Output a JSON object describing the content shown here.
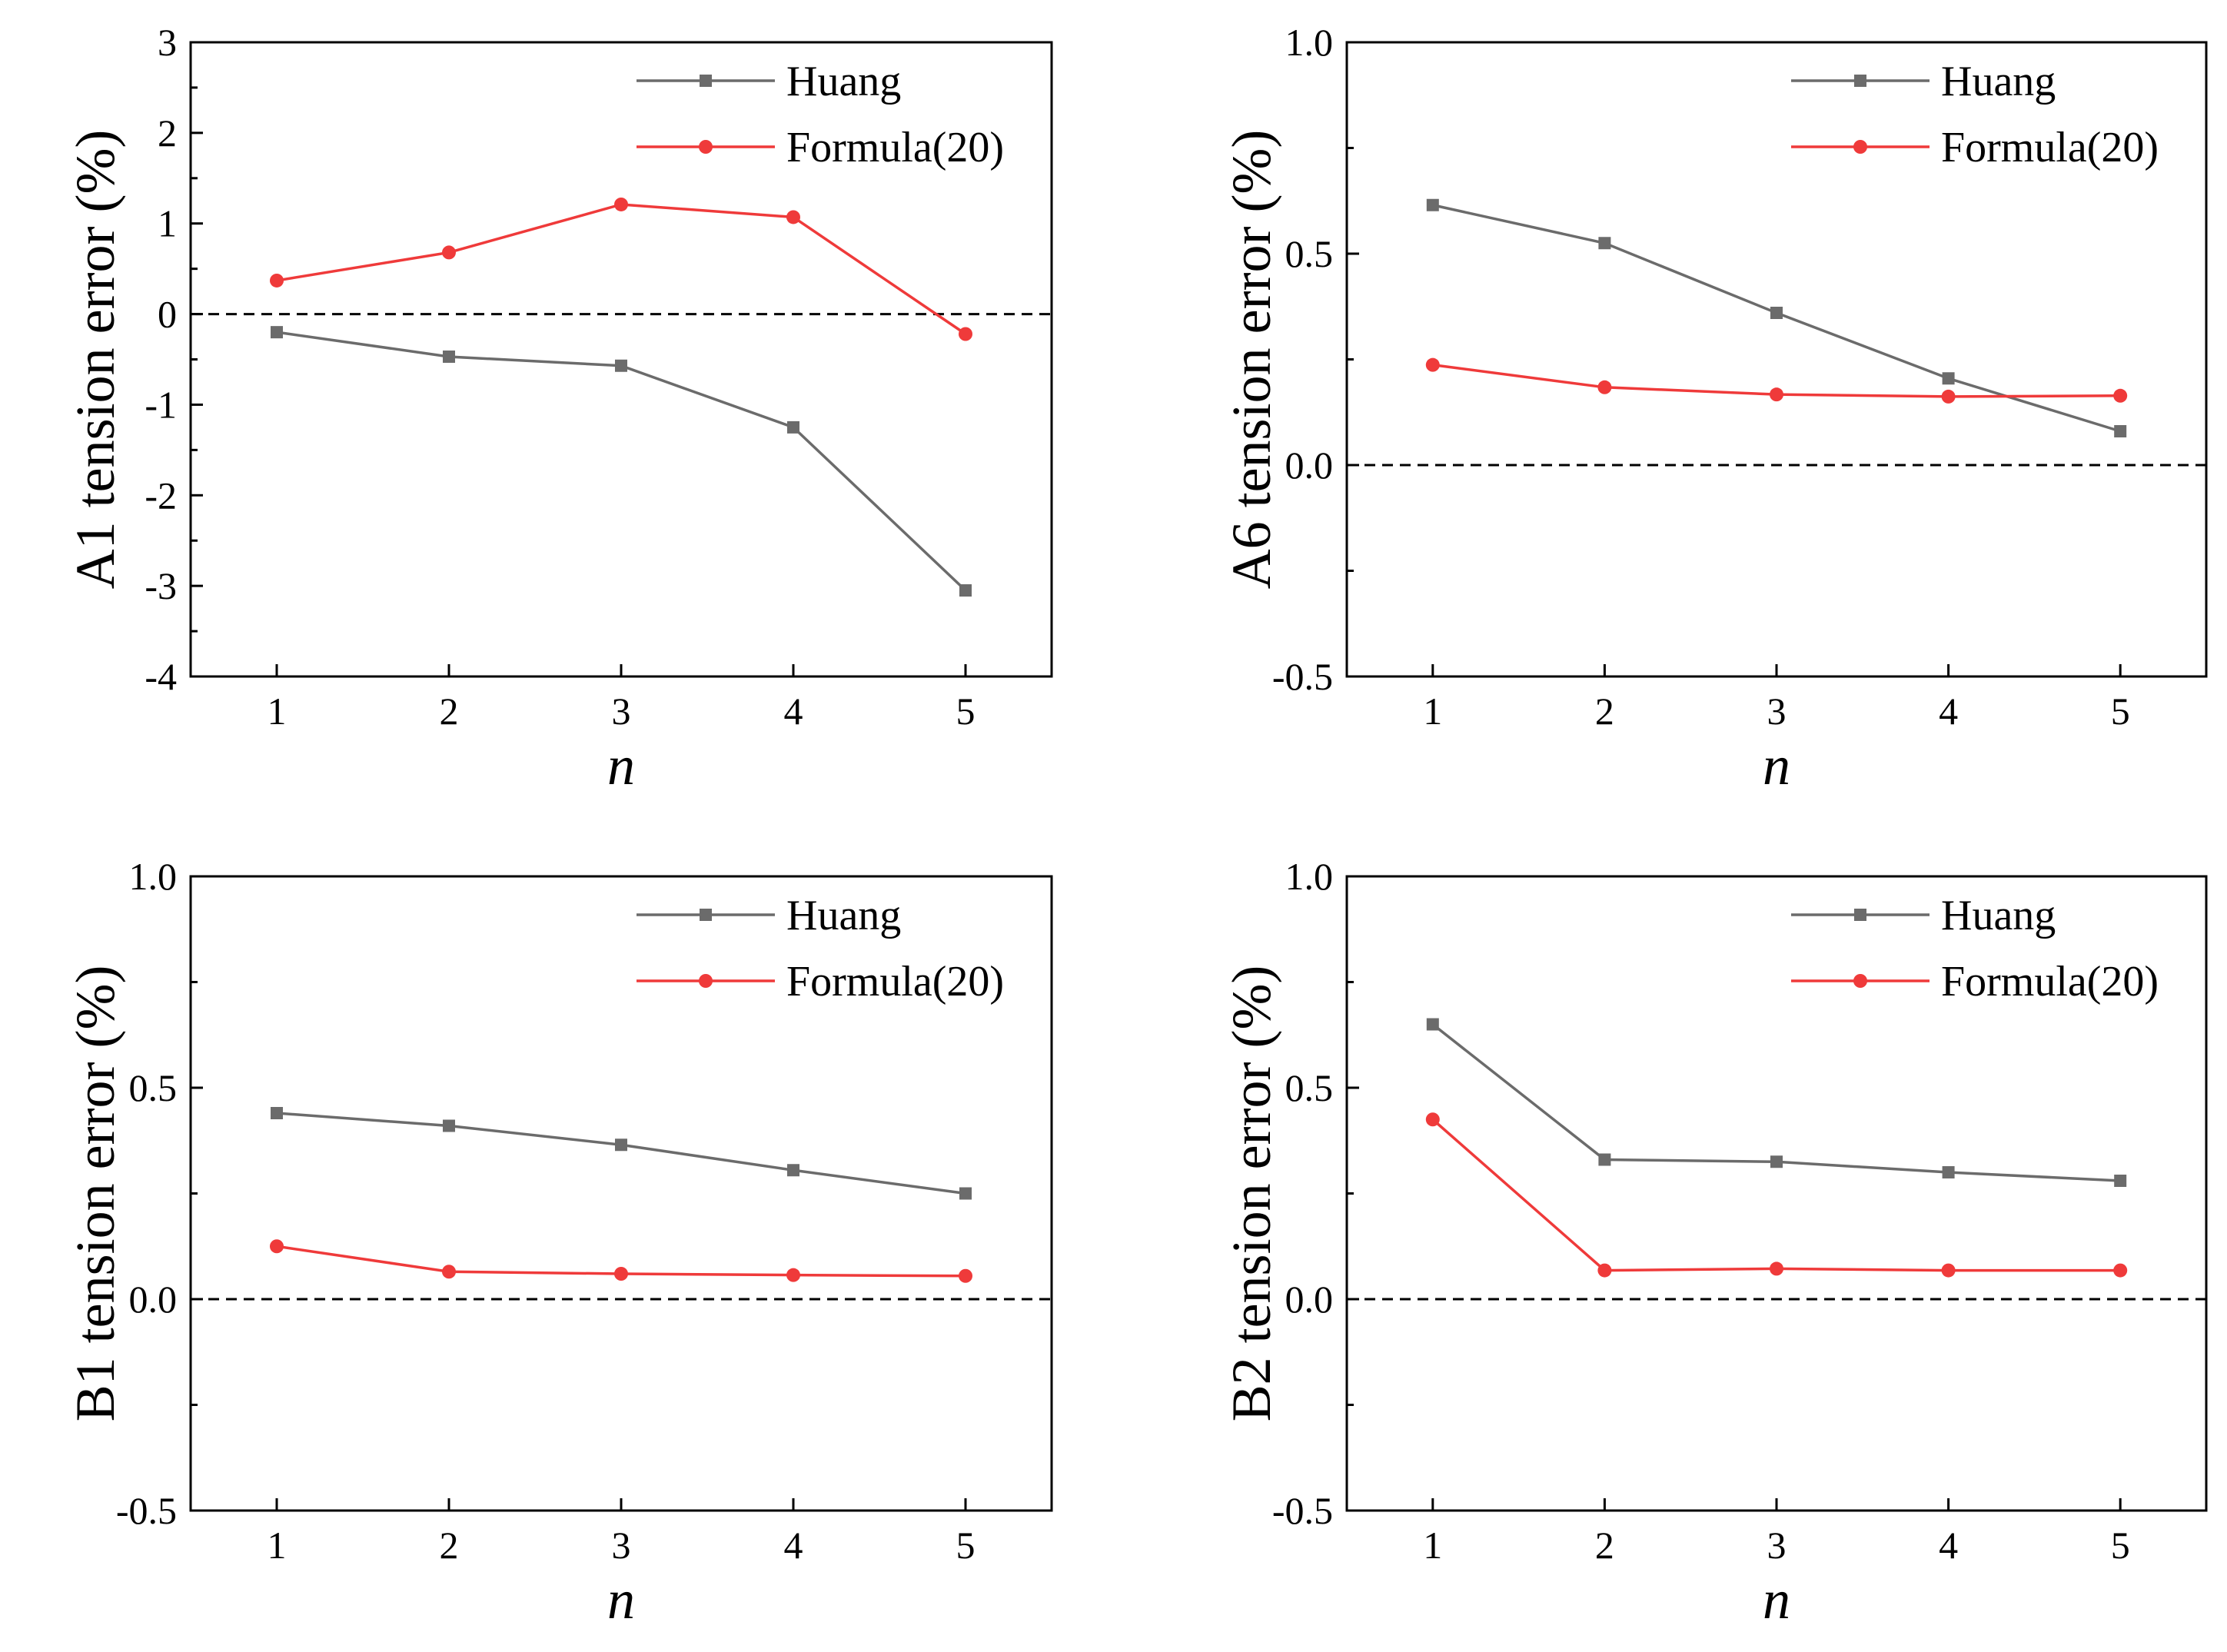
{
  "colors": {
    "huang": "#6b6b6b",
    "formula": "#ef3a3a",
    "axis": "#000000",
    "zero_line": "#000000"
  },
  "chart_data": [
    {
      "id": "A1",
      "type": "line",
      "ylabel": "A1 tension error (%)",
      "xlabel": "n",
      "x": [
        1,
        2,
        3,
        4,
        5
      ],
      "xticks": [
        "1",
        "2",
        "3",
        "4",
        "5"
      ],
      "xlim": [
        0.5,
        5.5
      ],
      "ylim": [
        -4,
        3
      ],
      "yticks": [
        -4,
        -3,
        -2,
        -1,
        0,
        1,
        2,
        3
      ],
      "ytick_labels": [
        "-4",
        "-3",
        "-2",
        "-1",
        "0",
        "1",
        "2",
        "3"
      ],
      "zero_line": 0,
      "legend_position": "top-right",
      "series": [
        {
          "name": "Huang",
          "key": "huang",
          "marker": "square",
          "values": [
            -0.2,
            -0.47,
            -0.57,
            -1.25,
            -3.05
          ]
        },
        {
          "name": "Formula(20)",
          "key": "formula",
          "marker": "circle",
          "values": [
            0.37,
            0.68,
            1.21,
            1.07,
            -0.22
          ]
        }
      ]
    },
    {
      "id": "A6",
      "type": "line",
      "ylabel": "A6 tension error (%)",
      "xlabel": "n",
      "x": [
        1,
        2,
        3,
        4,
        5
      ],
      "xticks": [
        "1",
        "2",
        "3",
        "4",
        "5"
      ],
      "xlim": [
        0.5,
        5.5
      ],
      "ylim": [
        -0.5,
        1.0
      ],
      "yticks": [
        -0.5,
        0.0,
        0.5,
        1.0
      ],
      "ytick_labels": [
        "-0.5",
        "0.0",
        "0.5",
        "1.0"
      ],
      "zero_line": 0,
      "legend_position": "top-right",
      "series": [
        {
          "name": "Huang",
          "key": "huang",
          "marker": "square",
          "values": [
            0.615,
            0.525,
            0.36,
            0.205,
            0.08
          ]
        },
        {
          "name": "Formula(20)",
          "key": "formula",
          "marker": "circle",
          "values": [
            0.237,
            0.184,
            0.167,
            0.162,
            0.164
          ]
        }
      ]
    },
    {
      "id": "B1",
      "type": "line",
      "ylabel": "B1 tension error (%)",
      "xlabel": "n",
      "x": [
        1,
        2,
        3,
        4,
        5
      ],
      "xticks": [
        "1",
        "2",
        "3",
        "4",
        "5"
      ],
      "xlim": [
        0.5,
        5.5
      ],
      "ylim": [
        -0.5,
        1.0
      ],
      "yticks": [
        -0.5,
        0.0,
        0.5,
        1.0
      ],
      "ytick_labels": [
        "-0.5",
        "0.0",
        "0.5",
        "1.0"
      ],
      "zero_line": 0,
      "legend_position": "top-right",
      "series": [
        {
          "name": "Huang",
          "key": "huang",
          "marker": "square",
          "values": [
            0.44,
            0.41,
            0.365,
            0.305,
            0.25
          ]
        },
        {
          "name": "Formula(20)",
          "key": "formula",
          "marker": "circle",
          "values": [
            0.125,
            0.065,
            0.06,
            0.057,
            0.055
          ]
        }
      ]
    },
    {
      "id": "B2",
      "type": "line",
      "ylabel": "B2 tension error (%)",
      "xlabel": "n",
      "x": [
        1,
        2,
        3,
        4,
        5
      ],
      "xticks": [
        "1",
        "2",
        "3",
        "4",
        "5"
      ],
      "xlim": [
        0.5,
        5.5
      ],
      "ylim": [
        -0.5,
        1.0
      ],
      "yticks": [
        -0.5,
        0.0,
        0.5,
        1.0
      ],
      "ytick_labels": [
        "-0.5",
        "0.0",
        "0.5",
        "1.0"
      ],
      "zero_line": 0,
      "legend_position": "top-right",
      "series": [
        {
          "name": "Huang",
          "key": "huang",
          "marker": "square",
          "values": [
            0.65,
            0.33,
            0.325,
            0.3,
            0.28
          ]
        },
        {
          "name": "Formula(20)",
          "key": "formula",
          "marker": "circle",
          "values": [
            0.425,
            0.068,
            0.072,
            0.068,
            0.068
          ]
        }
      ]
    }
  ]
}
